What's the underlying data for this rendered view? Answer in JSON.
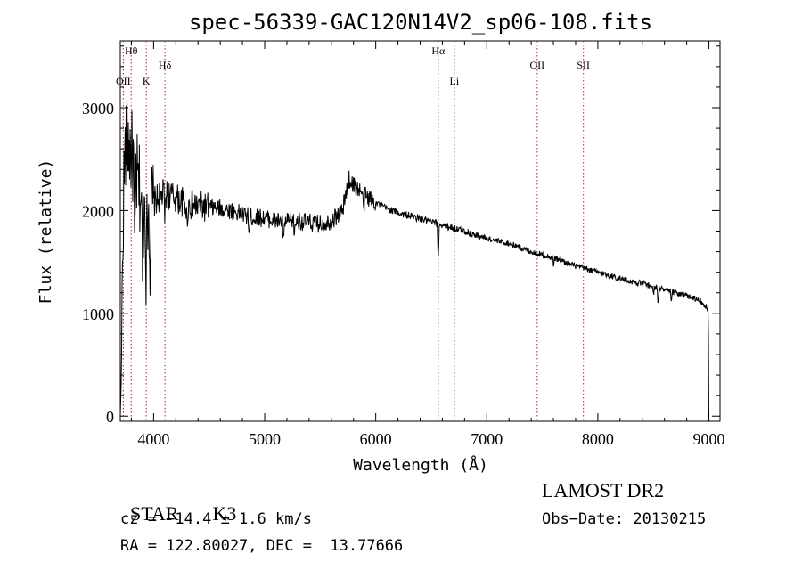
{
  "chart_data": {
    "type": "line",
    "title": "spec-56339-GAC120N14V2_sp06-108.fits",
    "xlabel": "Wavelength (Å)",
    "ylabel": "Flux (relative)",
    "xlim": [
      3700,
      9100
    ],
    "ylim": [
      -50,
      3650
    ],
    "xticks": [
      4000,
      5000,
      6000,
      7000,
      8000,
      9000
    ],
    "yticks": [
      0,
      1000,
      2000,
      3000
    ],
    "grid": false,
    "lines": [
      {
        "label": "OII",
        "x": 3727,
        "row": "low"
      },
      {
        "label": "Hθ",
        "x": 3798,
        "row": "top"
      },
      {
        "label": "K",
        "x": 3934,
        "row": "low"
      },
      {
        "label": "Hδ",
        "x": 4102,
        "row": "mid"
      },
      {
        "label": "Hα",
        "x": 6563,
        "row": "top"
      },
      {
        "label": "Li",
        "x": 6708,
        "row": "low"
      },
      {
        "label": "OII",
        "x": 7454,
        "row": "mid"
      },
      {
        "label": "SII",
        "x": 7870,
        "row": "mid"
      }
    ],
    "continuum": [
      [
        3700,
        0
      ],
      [
        3710,
        400
      ],
      [
        3720,
        1500
      ],
      [
        3730,
        2200
      ],
      [
        3745,
        2600
      ],
      [
        3760,
        2700
      ],
      [
        3800,
        2550
      ],
      [
        3850,
        2300
      ],
      [
        3900,
        2100
      ],
      [
        3950,
        2000
      ],
      [
        4000,
        2080
      ],
      [
        4100,
        2170
      ],
      [
        4200,
        2120
      ],
      [
        4300,
        2060
      ],
      [
        4400,
        2040
      ],
      [
        4500,
        2030
      ],
      [
        4600,
        2020
      ],
      [
        4700,
        2000
      ],
      [
        4800,
        1960
      ],
      [
        4900,
        1930
      ],
      [
        5000,
        1930
      ],
      [
        5100,
        1900
      ],
      [
        5200,
        1890
      ],
      [
        5300,
        1900
      ],
      [
        5400,
        1880
      ],
      [
        5500,
        1870
      ],
      [
        5600,
        1900
      ],
      [
        5700,
        2000
      ],
      [
        5760,
        2300
      ],
      [
        5800,
        2250
      ],
      [
        5900,
        2150
      ],
      [
        6000,
        2080
      ],
      [
        6100,
        2020
      ],
      [
        6200,
        1980
      ],
      [
        6300,
        1950
      ],
      [
        6400,
        1920
      ],
      [
        6500,
        1890
      ],
      [
        6600,
        1860
      ],
      [
        6700,
        1830
      ],
      [
        6800,
        1800
      ],
      [
        6900,
        1760
      ],
      [
        7000,
        1730
      ],
      [
        7100,
        1700
      ],
      [
        7200,
        1680
      ],
      [
        7300,
        1640
      ],
      [
        7400,
        1600
      ],
      [
        7500,
        1570
      ],
      [
        7600,
        1540
      ],
      [
        7700,
        1500
      ],
      [
        7800,
        1460
      ],
      [
        7900,
        1430
      ],
      [
        8000,
        1400
      ],
      [
        8100,
        1370
      ],
      [
        8200,
        1340
      ],
      [
        8300,
        1310
      ],
      [
        8400,
        1290
      ],
      [
        8500,
        1260
      ],
      [
        8600,
        1230
      ],
      [
        8700,
        1200
      ],
      [
        8800,
        1170
      ],
      [
        8900,
        1130
      ],
      [
        8950,
        1090
      ],
      [
        8985,
        1050
      ],
      [
        8995,
        1000
      ],
      [
        9000,
        0
      ]
    ],
    "absorption_features": [
      {
        "x": 3830,
        "depth": 1100
      },
      {
        "x": 3900,
        "depth": 700
      },
      {
        "x": 3934,
        "depth": 650
      },
      {
        "x": 3968,
        "depth": 500
      },
      {
        "x": 4102,
        "depth": 250
      },
      {
        "x": 4300,
        "depth": 200
      },
      {
        "x": 4861,
        "depth": 180
      },
      {
        "x": 5170,
        "depth": 250
      },
      {
        "x": 5270,
        "depth": 150
      },
      {
        "x": 5890,
        "depth": 200
      },
      {
        "x": 6563,
        "depth": 350
      },
      {
        "x": 7600,
        "depth": 60
      },
      {
        "x": 8500,
        "depth": 80
      },
      {
        "x": 8542,
        "depth": 150
      },
      {
        "x": 8662,
        "depth": 120
      }
    ]
  },
  "info": {
    "class_label": "STAR",
    "subclass": "K3",
    "survey": "LAMOST DR2",
    "redshift": "cz = −14.4 ± 1.6 km/s",
    "obs_date": "Obs−Date: 20130215",
    "coords": "RA = 122.80027, DEC =  13.77666"
  }
}
